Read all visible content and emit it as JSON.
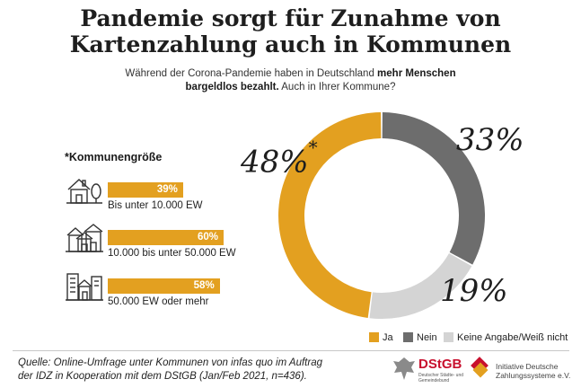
{
  "title_line1": "Pandemie sorgt für Zunahme von",
  "title_line2": "Kartenzahlung auch in Kommunen",
  "subtitle": {
    "part1": "Während der Corona-Pandemie haben in Deutschland ",
    "bold1": "mehr Menschen",
    "bold2": "bargeldlos bezahlt.",
    "part2": " Auch in Ihrer Kommune?"
  },
  "chart_data": [
    {
      "type": "pie",
      "variant": "donut",
      "categories": [
        "Ja",
        "Nein",
        "Keine Angabe/Weiß nicht"
      ],
      "values": [
        48,
        33,
        19
      ],
      "labels": [
        "48%",
        "33%",
        "19%"
      ],
      "footnote_marker": "*",
      "colors": [
        "#e3a020",
        "#6d6d6d",
        "#d4d4d4"
      ],
      "legend_position": "bottom-right"
    },
    {
      "type": "bar",
      "title": "*Kommunengröße",
      "categories": [
        "Bis unter 10.000 EW",
        "10.000 bis unter 50.000 EW",
        "50.000 EW oder mehr"
      ],
      "values": [
        39,
        60,
        58
      ],
      "labels": [
        "39%",
        "60%",
        "58%"
      ],
      "color": "#e3a020",
      "xlim": [
        0,
        100
      ]
    }
  ],
  "source_line1": "Quelle: Online-Umfrage unter Kommunen von infas quo im Auftrag",
  "source_line2": "der IDZ in Kooperation mit dem DStGB (Jan/Feb 2021, n=436).",
  "logo_dstgb": {
    "name": "DStGB",
    "small": "Deutscher Städte- und Gemeindebund"
  },
  "logo_idz": {
    "line1": "Initiative Deutsche",
    "line2": "Zahlungssysteme e.V."
  }
}
